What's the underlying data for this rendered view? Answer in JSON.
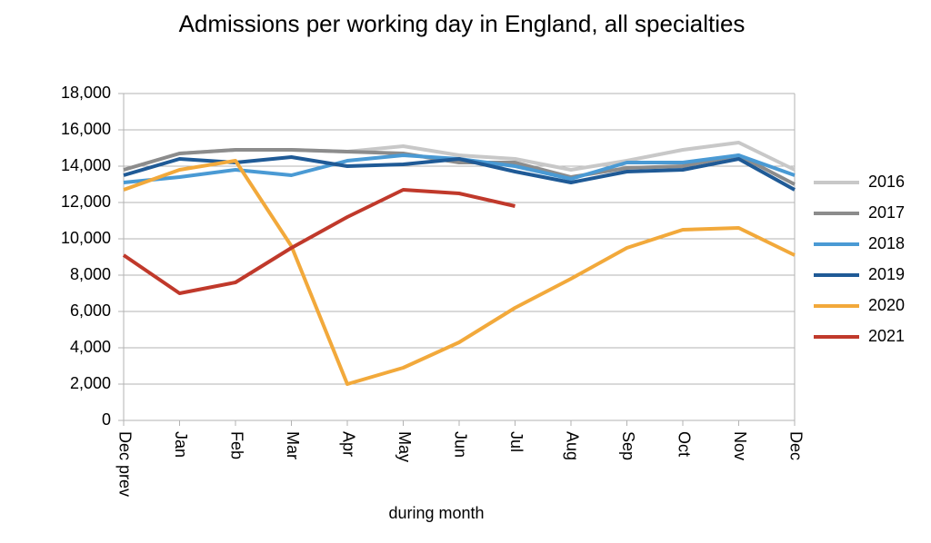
{
  "chart_data": {
    "type": "line",
    "title": "Admissions per working day in England, all specialties",
    "x_label": "during  month",
    "categories": [
      "Dec prev",
      "Jan",
      "Feb",
      "Mar",
      "Apr",
      "May",
      "Jun",
      "Jul",
      "Aug",
      "Sep",
      "Oct",
      "Nov",
      "Dec"
    ],
    "series": [
      {
        "name": "2016",
        "color": "#c8c8c8",
        "values": [
          13800,
          14700,
          14900,
          14900,
          14800,
          15100,
          14600,
          14400,
          13800,
          14300,
          14900,
          15300,
          13800
        ]
      },
      {
        "name": "2017",
        "color": "#8c8c8c",
        "values": [
          13800,
          14700,
          14900,
          14900,
          14800,
          14700,
          14200,
          14200,
          13400,
          13900,
          14000,
          14600,
          13000
        ]
      },
      {
        "name": "2018",
        "color": "#4a9ad4",
        "values": [
          13100,
          13400,
          13800,
          13500,
          14300,
          14600,
          14400,
          14000,
          13300,
          14200,
          14200,
          14600,
          13500
        ]
      },
      {
        "name": "2019",
        "color": "#1f5a96",
        "values": [
          13500,
          14400,
          14200,
          14500,
          14000,
          14100,
          14400,
          13700,
          13100,
          13700,
          13800,
          14400,
          12700
        ]
      },
      {
        "name": "2020",
        "color": "#f2a93b",
        "values": [
          12700,
          13800,
          14300,
          9600,
          2000,
          2900,
          4300,
          6200,
          7800,
          9500,
          10500,
          10600,
          9100
        ]
      },
      {
        "name": "2021",
        "color": "#c0392b",
        "values": [
          9100,
          7000,
          7600,
          9500,
          11200,
          12700,
          12500,
          11800,
          null,
          null,
          null,
          null,
          null
        ]
      }
    ],
    "ylim": [
      0,
      18000
    ],
    "yticks": [
      0,
      {
        "value": 2000,
        "label": "2,000"
      },
      {
        "value": 4000,
        "label": "4,000"
      },
      {
        "value": 6000,
        "label": "6,000"
      },
      {
        "value": 8000,
        "label": "8,000"
      },
      {
        "value": 10000,
        "label": "10,000"
      },
      {
        "value": 12000,
        "label": "12,000"
      },
      {
        "value": 14000,
        "label": "14,000"
      },
      {
        "value": 16000,
        "label": "16,000"
      },
      {
        "value": 18000,
        "label": "18,000"
      }
    ],
    "grid": true,
    "legend": "right"
  }
}
